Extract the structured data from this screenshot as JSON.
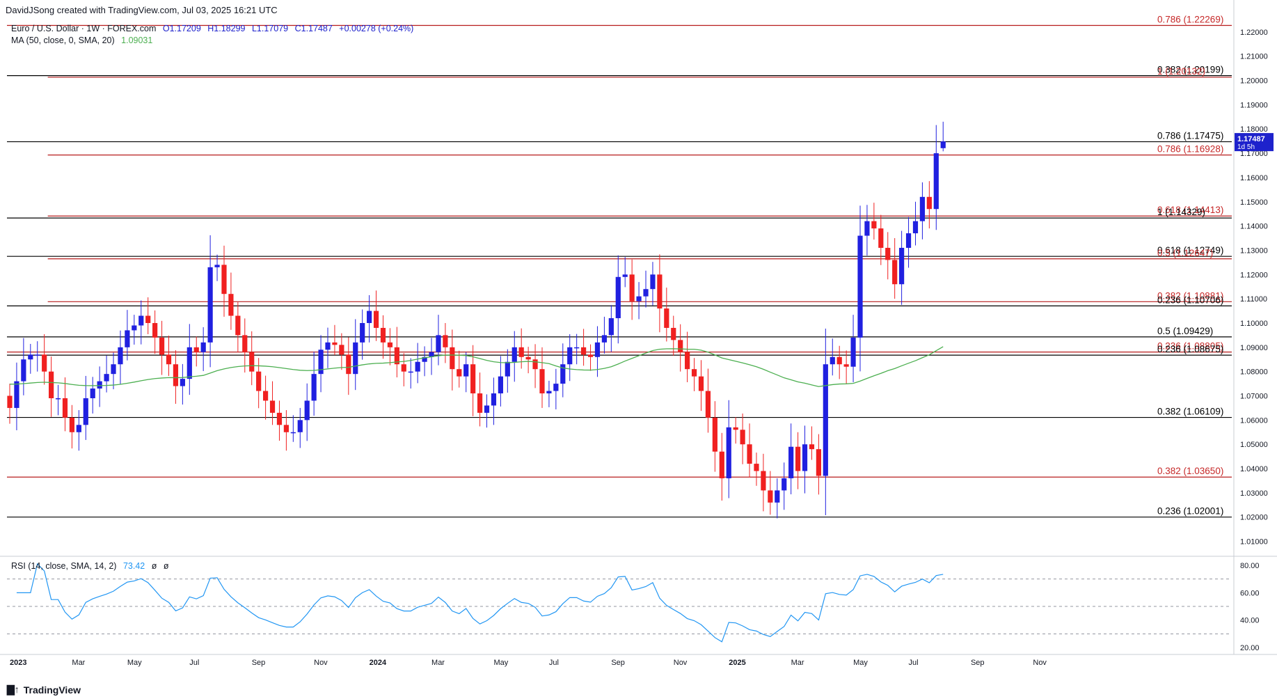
{
  "header": {
    "credit": "DavidJSong created with TradingView.com, Jul 03, 2025 16:21 UTC"
  },
  "legend": {
    "symbol": "Euro / U.S. Dollar · 1W · FOREX.com",
    "open": "O1.17209",
    "high": "H1.18299",
    "low": "L1.17079",
    "close": "C1.17487",
    "change": "+0.00278 (+0.24%)",
    "ma_label": "MA (50, close, 0, SMA, 20)",
    "ma_value": "1.09031",
    "rsi_label": "RSI (14, close, SMA, 14, 2)",
    "rsi_value": "73.42",
    "rsi_extra1": "ø",
    "rsi_extra2": "ø"
  },
  "footer": {
    "logo": "TradingView"
  },
  "colors": {
    "up": "#2020e0",
    "down": "#f02020",
    "ma": "#4caf50",
    "rsi": "#2196f3",
    "level_black": "#000000",
    "level_red": "#b71c1c",
    "label_red": "#c62828",
    "price_tag": "#1e22cc"
  },
  "chart_data": {
    "type": "candlestick",
    "symbol": "EURUSD",
    "timeframe": "1W",
    "price_axis": {
      "min": 1.005,
      "max": 1.228,
      "ticks": [
        "1.22000",
        "1.21000",
        "1.20000",
        "1.19000",
        "1.18000",
        "1.17000",
        "1.16000",
        "1.15000",
        "1.14000",
        "1.13000",
        "1.12000",
        "1.11000",
        "1.10000",
        "1.09000",
        "1.08000",
        "1.07000",
        "1.06000",
        "1.05000",
        "1.04000",
        "1.03000",
        "1.02000",
        "1.01000"
      ],
      "tick_values": [
        1.22,
        1.21,
        1.2,
        1.19,
        1.18,
        1.17,
        1.16,
        1.15,
        1.14,
        1.13,
        1.12,
        1.11,
        1.1,
        1.09,
        1.08,
        1.07,
        1.06,
        1.05,
        1.04,
        1.03,
        1.02,
        1.01
      ]
    },
    "current_price": {
      "value": 1.17487,
      "label": "1.17487",
      "countdown": "1d 5h"
    },
    "time_axis": {
      "labels": [
        "2023",
        "Mar",
        "May",
        "Jul",
        "Sep",
        "Nov",
        "2024",
        "Mar",
        "May",
        "Jul",
        "Sep",
        "Nov",
        "2025",
        "Mar",
        "May",
        "Jul",
        "Sep",
        "Nov"
      ],
      "label_weeks": [
        0,
        9,
        17,
        26,
        35,
        44,
        52,
        61,
        70,
        78,
        87,
        96,
        104,
        113,
        122,
        130,
        139,
        148
      ]
    },
    "levels": [
      {
        "label": "0.786 (1.22269)",
        "value": 1.22269,
        "color": "red",
        "style": "full"
      },
      {
        "label": "0.382 (1.20199)",
        "value": 1.20199,
        "color": "black",
        "style": "full"
      },
      {
        "label": "1 (1.20132)",
        "value": 1.20132,
        "color": "red",
        "style": "partial"
      },
      {
        "label": "0.786 (1.17475)",
        "value": 1.17475,
        "color": "black",
        "style": "full"
      },
      {
        "label": "0.786 (1.16928)",
        "value": 1.16928,
        "color": "red",
        "style": "partial"
      },
      {
        "label": "0.618 (1.14413)",
        "value": 1.14413,
        "color": "red",
        "style": "partial"
      },
      {
        "label": "1 (1.14329)",
        "value": 1.14329,
        "color": "black",
        "style": "full"
      },
      {
        "label": "0.618 (1.12749)",
        "value": 1.12749,
        "color": "black",
        "style": "full"
      },
      {
        "label": "0.5 (1.12647)",
        "value": 1.12647,
        "color": "red",
        "style": "partial"
      },
      {
        "label": "0.382 (1.10881)",
        "value": 1.10881,
        "color": "red",
        "style": "partial"
      },
      {
        "label": "0.236 (1.10706)",
        "value": 1.10706,
        "color": "black",
        "style": "full"
      },
      {
        "label": "0.5 (1.09429)",
        "value": 1.09429,
        "color": "black",
        "style": "full"
      },
      {
        "label": "0.236 (1.08805)",
        "value": 1.08805,
        "color": "red",
        "style": "full"
      },
      {
        "label": "0.236 (1.08675)",
        "value": 1.08675,
        "color": "black",
        "style": "full"
      },
      {
        "label": "0.382 (1.06109)",
        "value": 1.06109,
        "color": "black",
        "style": "full"
      },
      {
        "label": "0.382 (1.03650)",
        "value": 1.0365,
        "color": "red",
        "style": "full"
      },
      {
        "label": "0.236 (1.02001)",
        "value": 1.02001,
        "color": "black",
        "style": "full"
      }
    ],
    "closes": [
      1.065,
      1.076,
      1.085,
      1.087,
      1.087,
      1.08,
      1.069,
      1.069,
      1.061,
      1.055,
      1.058,
      1.069,
      1.073,
      1.076,
      1.079,
      1.083,
      1.09,
      1.097,
      1.099,
      1.103,
      1.1,
      1.094,
      1.087,
      1.083,
      1.074,
      1.077,
      1.09,
      1.088,
      1.092,
      1.123,
      1.124,
      1.112,
      1.103,
      1.095,
      1.088,
      1.08,
      1.072,
      1.068,
      1.063,
      1.058,
      1.055,
      1.055,
      1.06,
      1.068,
      1.079,
      1.089,
      1.092,
      1.091,
      1.087,
      1.079,
      1.092,
      1.1,
      1.105,
      1.098,
      1.092,
      1.09,
      1.083,
      1.08,
      1.08,
      1.084,
      1.086,
      1.088,
      1.095,
      1.09,
      1.081,
      1.078,
      1.083,
      1.071,
      1.063,
      1.066,
      1.071,
      1.078,
      1.084,
      1.09,
      1.086,
      1.085,
      1.081,
      1.071,
      1.072,
      1.075,
      1.083,
      1.09,
      1.09,
      1.087,
      1.086,
      1.092,
      1.095,
      1.102,
      1.119,
      1.12,
      1.109,
      1.111,
      1.114,
      1.12,
      1.106,
      1.098,
      1.093,
      1.088,
      1.081,
      1.078,
      1.072,
      1.061,
      1.047,
      1.036,
      1.057,
      1.056,
      1.05,
      1.042,
      1.039,
      1.031,
      1.026,
      1.031,
      1.036,
      1.049,
      1.039,
      1.05,
      1.048,
      1.037,
      1.083,
      1.086,
      1.083,
      1.082,
      1.094,
      1.136,
      1.142,
      1.139,
      1.131,
      1.126,
      1.116,
      1.131,
      1.137,
      1.142,
      1.152,
      1.147,
      1.17,
      1.1749
    ],
    "ma50_note": "50-period SMA overlay (green)",
    "rsi": {
      "axis_ticks": [
        "80.00",
        "60.00",
        "40.00",
        "20.00"
      ],
      "tick_values": [
        80,
        60,
        40,
        20
      ],
      "bands": [
        70,
        50,
        30
      ],
      "min": 15,
      "max": 82,
      "last": 73.42
    }
  }
}
